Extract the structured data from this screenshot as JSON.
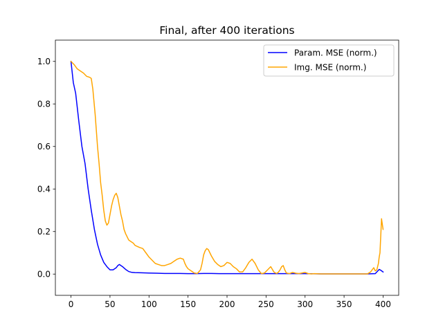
{
  "chart_data": {
    "type": "line",
    "title": "Final, after 400 iterations",
    "xlabel": "",
    "ylabel": "",
    "xlim": [
      -20,
      420
    ],
    "ylim": [
      -0.1,
      1.1
    ],
    "xticks": [
      0,
      50,
      100,
      150,
      200,
      250,
      300,
      350,
      400
    ],
    "yticks": [
      0.0,
      0.2,
      0.4,
      0.6,
      0.8,
      1.0
    ],
    "grid": false,
    "legend_position": "top-right",
    "series": [
      {
        "name": "Param. MSE (norm.)",
        "color": "#0000ff",
        "x": [
          0,
          3,
          6,
          10,
          14,
          18,
          22,
          26,
          30,
          34,
          38,
          42,
          46,
          50,
          54,
          58,
          60,
          62,
          66,
          70,
          74,
          78,
          82,
          90,
          100,
          110,
          120,
          130,
          140,
          150,
          160,
          170,
          180,
          190,
          200,
          220,
          240,
          260,
          280,
          300,
          320,
          340,
          360,
          380,
          390,
          395,
          397,
          400
        ],
        "y": [
          1.0,
          0.9,
          0.85,
          0.72,
          0.6,
          0.52,
          0.4,
          0.3,
          0.21,
          0.14,
          0.09,
          0.055,
          0.035,
          0.02,
          0.02,
          0.03,
          0.04,
          0.045,
          0.035,
          0.022,
          0.012,
          0.008,
          0.007,
          0.006,
          0.005,
          0.004,
          0.003,
          0.003,
          0.003,
          0.002,
          0.002,
          0.003,
          0.003,
          0.002,
          0.002,
          0.002,
          0.002,
          0.002,
          0.002,
          0.002,
          0.001,
          0.001,
          0.001,
          0.001,
          0.002,
          0.022,
          0.018,
          0.01
        ]
      },
      {
        "name": "Img. MSE (norm.)",
        "color": "#ffa500",
        "x": [
          0,
          4,
          8,
          12,
          16,
          20,
          24,
          26,
          28,
          31,
          34,
          36,
          38,
          40,
          42,
          44,
          46,
          48,
          50,
          52,
          54,
          56,
          58,
          60,
          62,
          64,
          66,
          68,
          70,
          72,
          74,
          76,
          78,
          80,
          82,
          85,
          88,
          92,
          96,
          100,
          104,
          108,
          112,
          116,
          120,
          124,
          128,
          132,
          136,
          140,
          144,
          146,
          148,
          150,
          154,
          158,
          162,
          166,
          168,
          170,
          172,
          174,
          176,
          178,
          180,
          184,
          188,
          192,
          196,
          200,
          204,
          208,
          212,
          216,
          220,
          224,
          228,
          232,
          236,
          240,
          244,
          248,
          252,
          256,
          260,
          262,
          264,
          266,
          268,
          270,
          272,
          274,
          276,
          280,
          284,
          288,
          292,
          296,
          300,
          304,
          308,
          312,
          320,
          330,
          340,
          350,
          360,
          370,
          380,
          384,
          386,
          388,
          390,
          392,
          394,
          395,
          396,
          398,
          400
        ],
        "y": [
          1.0,
          0.985,
          0.965,
          0.955,
          0.945,
          0.93,
          0.925,
          0.92,
          0.87,
          0.75,
          0.6,
          0.52,
          0.43,
          0.37,
          0.3,
          0.25,
          0.23,
          0.24,
          0.28,
          0.32,
          0.35,
          0.37,
          0.38,
          0.36,
          0.32,
          0.28,
          0.25,
          0.21,
          0.19,
          0.175,
          0.16,
          0.155,
          0.15,
          0.145,
          0.135,
          0.13,
          0.125,
          0.12,
          0.1,
          0.08,
          0.065,
          0.05,
          0.045,
          0.04,
          0.04,
          0.045,
          0.05,
          0.06,
          0.07,
          0.075,
          0.07,
          0.05,
          0.035,
          0.025,
          0.015,
          0.005,
          0.003,
          0.02,
          0.05,
          0.09,
          0.11,
          0.12,
          0.115,
          0.1,
          0.085,
          0.06,
          0.045,
          0.035,
          0.04,
          0.055,
          0.05,
          0.035,
          0.025,
          0.01,
          0.01,
          0.03,
          0.055,
          0.07,
          0.05,
          0.02,
          0.002,
          0.005,
          0.02,
          0.035,
          0.01,
          0.005,
          0.003,
          0.01,
          0.02,
          0.035,
          0.04,
          0.02,
          0.005,
          0.002,
          0.008,
          0.004,
          0.002,
          0.005,
          0.008,
          0.002,
          0.001,
          0.002,
          0.001,
          0.001,
          0.001,
          0.001,
          0.001,
          0.001,
          0.001,
          0.01,
          0.02,
          0.03,
          0.015,
          0.02,
          0.05,
          0.08,
          0.1,
          0.26,
          0.21
        ]
      }
    ]
  }
}
